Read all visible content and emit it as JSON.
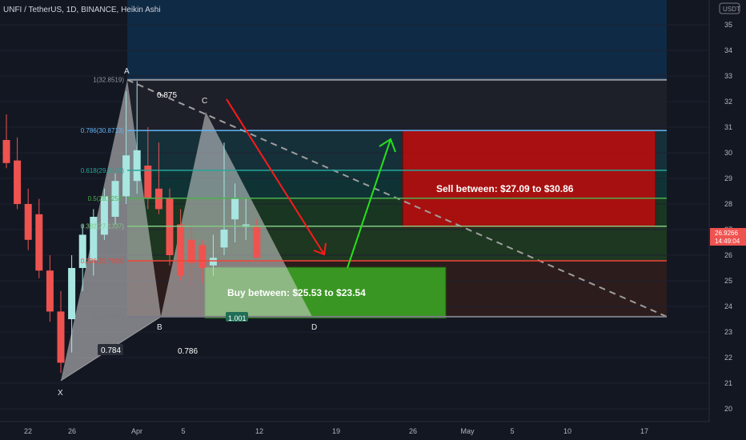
{
  "header": {
    "symbol_title": "UNFI / TetherUS, 1D, BINANCE, Heikin Ashi",
    "currency_badge": "USDT"
  },
  "price_tag": {
    "price": "26.9266",
    "countdown": "14:49:04",
    "color": "#ef5350"
  },
  "colors": {
    "background": "#131722",
    "bull": "#a8e6e1",
    "bull_strong": "#26a69a",
    "bear": "#ef5350",
    "bear_light": "#f6b8b8",
    "sell_zone": "#b00f0f",
    "buy_zone": "#3a9d23"
  },
  "chart_data": {
    "type": "candlestick",
    "y_axis": {
      "ylim": [
        19.6,
        36.1
      ],
      "ticks": [
        20,
        21,
        22,
        23,
        24,
        25,
        26,
        27,
        28,
        29,
        30,
        31,
        32,
        33,
        34,
        35
      ]
    },
    "x_axis": {
      "tick_labels": [
        "22",
        "26",
        "Apr",
        "5",
        "12",
        "19",
        "26",
        "May",
        "5",
        "10",
        "17"
      ]
    },
    "candles": [
      {
        "o": 30.5,
        "h": 31.5,
        "l": 29.4,
        "c": 29.6
      },
      {
        "o": 29.7,
        "h": 30.6,
        "l": 27.8,
        "c": 28.0
      },
      {
        "o": 28.0,
        "h": 28.6,
        "l": 26.2,
        "c": 26.6
      },
      {
        "o": 27.6,
        "h": 28.2,
        "l": 25.1,
        "c": 25.4
      },
      {
        "o": 25.4,
        "h": 26.0,
        "l": 23.4,
        "c": 23.8
      },
      {
        "o": 23.8,
        "h": 24.6,
        "l": 21.4,
        "c": 21.8
      },
      {
        "o": 23.5,
        "h": 26.0,
        "l": 22.2,
        "c": 25.5
      },
      {
        "o": 25.5,
        "h": 27.2,
        "l": 24.6,
        "c": 26.8
      },
      {
        "o": 25.8,
        "h": 27.8,
        "l": 25.2,
        "c": 27.5
      },
      {
        "o": 26.8,
        "h": 28.6,
        "l": 26.6,
        "c": 28.3
      },
      {
        "o": 27.5,
        "h": 29.2,
        "l": 27.2,
        "c": 28.9
      },
      {
        "o": 28.3,
        "h": 32.4,
        "l": 28.0,
        "c": 29.9
      },
      {
        "o": 28.9,
        "h": 32.8,
        "l": 28.4,
        "c": 30.1
      },
      {
        "o": 29.5,
        "h": 31.0,
        "l": 27.8,
        "c": 28.2
      },
      {
        "o": 28.6,
        "h": 30.4,
        "l": 27.6,
        "c": 27.8
      },
      {
        "o": 28.2,
        "h": 28.6,
        "l": 25.6,
        "c": 26.0
      },
      {
        "o": 27.2,
        "h": 27.8,
        "l": 25.0,
        "c": 25.2
      },
      {
        "o": 26.6,
        "h": 27.2,
        "l": 24.8,
        "c": 25.7
      },
      {
        "o": 26.4,
        "h": 26.6,
        "l": 24.9,
        "c": 25.5
      },
      {
        "o": 25.6,
        "h": 26.8,
        "l": 25.2,
        "c": 25.9
      },
      {
        "o": 26.3,
        "h": 30.4,
        "l": 26.0,
        "c": 27.0
      },
      {
        "o": 27.4,
        "h": 28.8,
        "l": 26.5,
        "c": 28.2
      },
      {
        "o": 27.1,
        "h": 28.2,
        "l": 26.6,
        "c": 27.2
      },
      {
        "o": 27.1,
        "h": 27.4,
        "l": 25.9,
        "c": 25.9
      }
    ],
    "fib_levels": [
      {
        "label": "1(32.8519)",
        "value": 32.8519,
        "color": "#9598a1"
      },
      {
        "label": "0.786(30.8713)",
        "value": 30.8713,
        "color": "#64b5f6"
      },
      {
        "label": "0.618(29.3174)",
        "value": 29.3174,
        "color": "#26a69a"
      },
      {
        "label": "0.5(28.2256)",
        "value": 28.2256,
        "color": "#4caf50"
      },
      {
        "label": "0.382(27.1337)",
        "value": 27.1337,
        "color": "#81c784"
      },
      {
        "label": "0.236(25.7829)",
        "value": 25.7829,
        "color": "#f44336"
      },
      {
        "label": "0(23.5992)",
        "value": 23.5992,
        "color": "#787b86"
      }
    ],
    "harmonic_points": [
      {
        "label": "X",
        "value": 21.1
      },
      {
        "label": "A",
        "value": 32.85
      },
      {
        "label": "B",
        "value": 23.6
      },
      {
        "label": "C",
        "value": 31.6
      },
      {
        "label": "D",
        "value": 23.6
      }
    ],
    "harmonic_ratios": [
      "0.875",
      "0.784",
      "0.786",
      "1.001"
    ],
    "zones": {
      "sell": {
        "label": "Sell between: $27.09 to $30.86",
        "from": 27.09,
        "to": 30.86
      },
      "buy": {
        "label": "Buy between: $25.53 to $23.54",
        "from": 23.54,
        "to": 25.53
      }
    }
  }
}
